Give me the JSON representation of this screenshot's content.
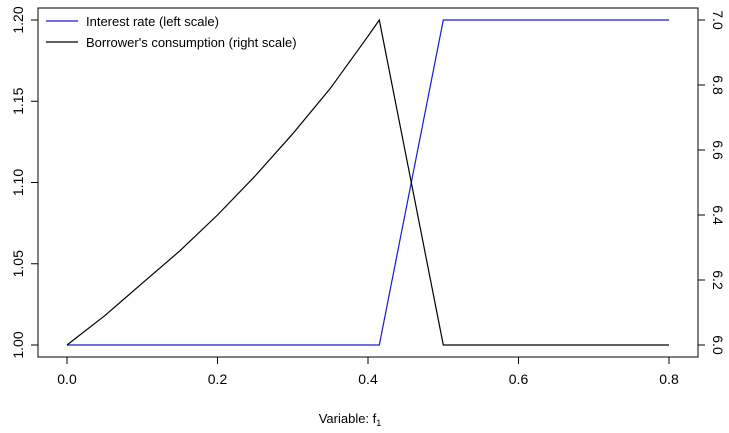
{
  "chart_data": {
    "type": "line",
    "xlabel": "Variable: f",
    "xlabel_subscript": "1",
    "xlim": [
      0.0,
      0.8
    ],
    "x_ticks": [
      "0.0",
      "0.2",
      "0.4",
      "0.6",
      "0.8"
    ],
    "x_tick_values": [
      0.0,
      0.2,
      0.4,
      0.6,
      0.8
    ],
    "y_left_lim": [
      1.0,
      1.2
    ],
    "y_left_ticks": [
      "1.00",
      "1.05",
      "1.10",
      "1.15",
      "1.20"
    ],
    "y_left_tick_values": [
      1.0,
      1.05,
      1.1,
      1.15,
      1.2
    ],
    "y_right_lim": [
      6.0,
      7.0
    ],
    "y_right_ticks": [
      "6.0",
      "6.2",
      "6.4",
      "6.6",
      "6.8",
      "7.0"
    ],
    "y_right_tick_values": [
      6.0,
      6.2,
      6.4,
      6.6,
      6.8,
      7.0
    ],
    "grid": false,
    "legend_position": "top-left",
    "series": [
      {
        "name": "Interest rate (left scale)",
        "axis": "left",
        "color": "#1a1ad6",
        "x": [
          0.0,
          0.415,
          0.5,
          0.8
        ],
        "y": [
          1.0,
          1.0,
          1.2,
          1.2
        ]
      },
      {
        "name": "Borrower's consumption (right scale)",
        "axis": "right",
        "color": "#000000",
        "x": [
          0.0,
          0.05,
          0.1,
          0.15,
          0.2,
          0.25,
          0.3,
          0.35,
          0.4,
          0.415,
          0.5,
          0.8
        ],
        "y": [
          6.0,
          6.09,
          6.19,
          6.29,
          6.4,
          6.52,
          6.65,
          6.79,
          6.95,
          7.0,
          6.0,
          6.0
        ]
      }
    ]
  }
}
